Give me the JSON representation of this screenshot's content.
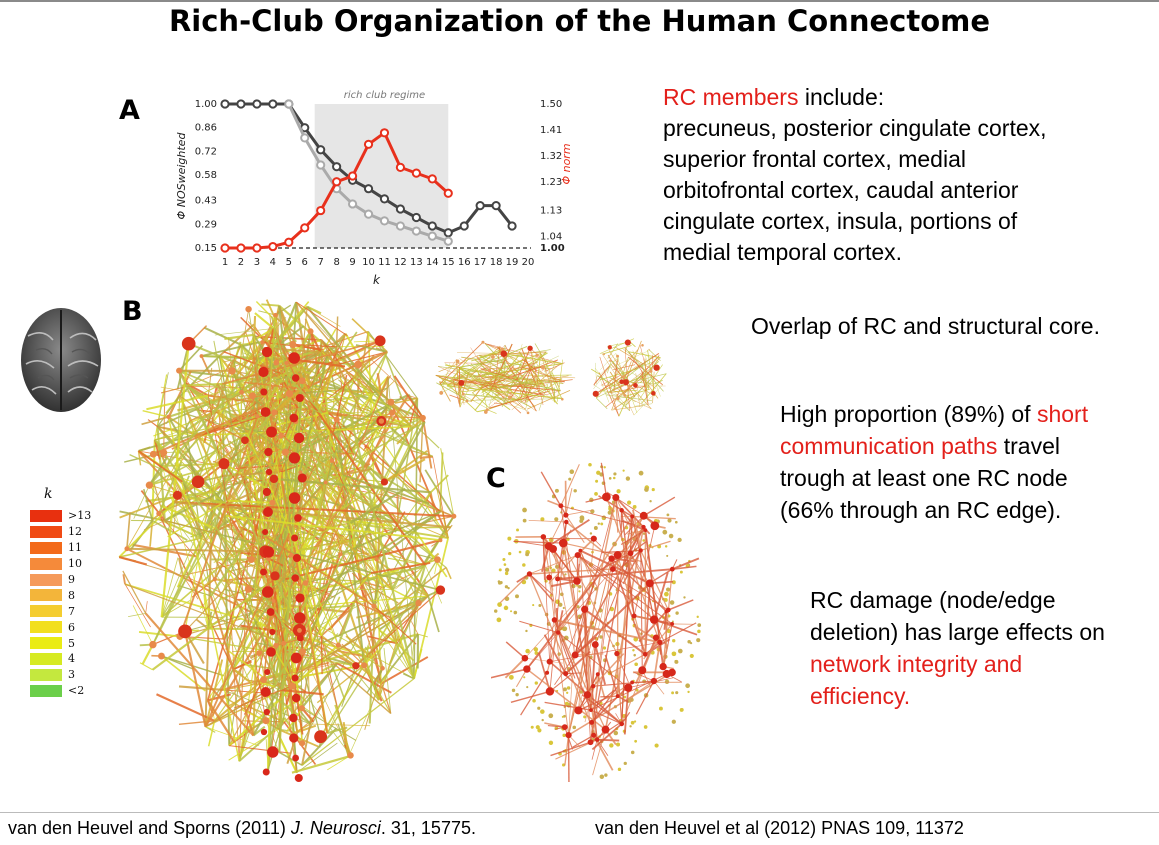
{
  "title": "Rich-Club Organization of the Human Connectome",
  "panels": {
    "a": "A",
    "b": "B",
    "c": "C"
  },
  "rc_text": {
    "highlight": "RC members",
    "line1_rest": " include:",
    "lines": [
      "precuneus, posterior cingulate cortex,",
      "superior frontal cortex, medial",
      "orbitofrontal cortex, caudal anterior",
      "cingulate cortex, insula, portions of",
      "medial temporal cortex."
    ]
  },
  "overlap_text": "Overlap of RC and structural core.",
  "paths_text": {
    "p1": "High proportion (89%) of ",
    "p1_red": "short",
    "p2_red": "communication paths",
    "p2": " travel",
    "p3": "trough at least one RC node",
    "p4": "(66% through an RC edge)."
  },
  "damage_text": {
    "l1": "RC damage (node/edge",
    "l2": "deletion) has large effects on",
    "l3_red": "network integrity and",
    "l4_red": "efficiency."
  },
  "footer": {
    "left_pre": "van den Heuvel and Sporns (2011) ",
    "left_journal": "J. Neurosci",
    "left_post": ". 31, 15775.",
    "right": "van den Heuvel et al (2012) PNAS 109, 11372"
  },
  "legend": {
    "title": "k",
    "items": [
      {
        "label": ">13",
        "color": "#e8300f"
      },
      {
        "label": "12",
        "color": "#f04a14"
      },
      {
        "label": "11",
        "color": "#f36a1a"
      },
      {
        "label": "10",
        "color": "#f58a3a"
      },
      {
        "label": "9",
        "color": "#f59a5a"
      },
      {
        "label": "8",
        "color": "#f3b53a"
      },
      {
        "label": "7",
        "color": "#f4cd30"
      },
      {
        "label": "6",
        "color": "#f2df1e"
      },
      {
        "label": "5",
        "color": "#eaec14"
      },
      {
        "label": "4",
        "color": "#d6ea22"
      },
      {
        "label": "3",
        "color": "#c4e83e"
      },
      {
        "label": "<2",
        "color": "#6bcf4a"
      }
    ]
  },
  "chart_data": {
    "type": "line",
    "regime_label": "rich club regime",
    "regime_range": [
      7,
      15
    ],
    "x": [
      1,
      2,
      3,
      4,
      5,
      6,
      7,
      8,
      9,
      10,
      11,
      12,
      13,
      14,
      15,
      16,
      17,
      18,
      19,
      20
    ],
    "xlabel": "k",
    "ylabel_left": "Φ NOSweighted",
    "ylabel_right": "Φ norm",
    "y_left_ticks": [
      "1.00",
      "0.86",
      "0.72",
      "0.58",
      "0.43",
      "0.29",
      "0.15"
    ],
    "y_right_ticks": [
      "1.50",
      "1.41",
      "1.32",
      "1.23",
      "1.13",
      "1.04",
      "1.00"
    ],
    "ylim_left": [
      0.15,
      1.0
    ],
    "ylim_right": [
      1.0,
      1.5
    ],
    "series": [
      {
        "axis": "left",
        "color": "#444444",
        "x": [
          1,
          2,
          3,
          4,
          5,
          6,
          7,
          8,
          9,
          10,
          11,
          12,
          13,
          14,
          15,
          16,
          17,
          18,
          19
        ],
        "values": [
          1.0,
          1.0,
          1.0,
          1.0,
          1.0,
          0.86,
          0.73,
          0.63,
          0.55,
          0.5,
          0.44,
          0.38,
          0.33,
          0.28,
          0.24,
          0.28,
          0.4,
          0.4,
          0.28
        ]
      },
      {
        "axis": "left",
        "color": "#aaaaaa",
        "x": [
          5,
          6,
          7,
          8,
          9,
          10,
          11,
          12,
          13,
          14,
          15
        ],
        "values": [
          1.0,
          0.8,
          0.64,
          0.5,
          0.41,
          0.35,
          0.31,
          0.28,
          0.25,
          0.22,
          0.19
        ]
      },
      {
        "axis": "right",
        "color": "#e8301c",
        "x": [
          1,
          2,
          3,
          4,
          5,
          6,
          7,
          8,
          9,
          10,
          11,
          12,
          13,
          14,
          15
        ],
        "values": [
          1.0,
          1.0,
          1.0,
          1.005,
          1.02,
          1.07,
          1.13,
          1.23,
          1.25,
          1.36,
          1.4,
          1.28,
          1.26,
          1.24,
          1.19
        ]
      }
    ],
    "reference_line": 1.0
  }
}
